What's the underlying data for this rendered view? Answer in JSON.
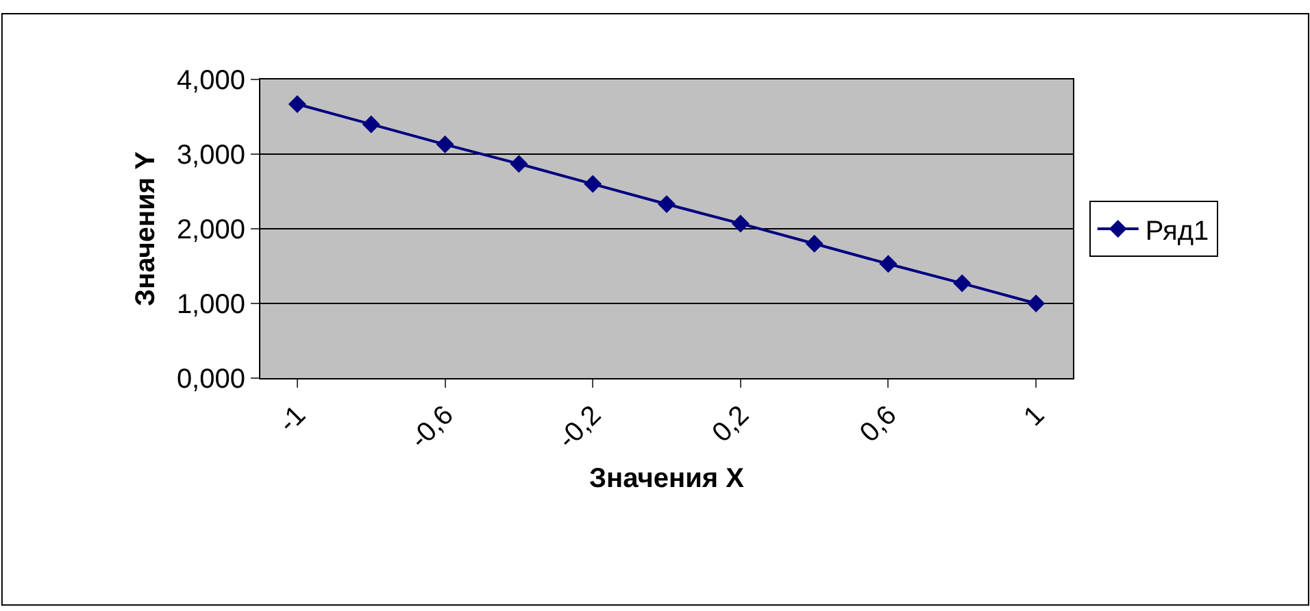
{
  "chart_data": {
    "type": "line",
    "xlabel": "Значения X",
    "ylabel": "Значения Y",
    "categories": [
      "-1",
      null,
      "-0,6",
      null,
      "-0,2",
      null,
      "0,2",
      null,
      "0,6",
      null,
      "1"
    ],
    "series": [
      {
        "name": "Ряд1",
        "color": "#000080",
        "values": [
          3.67,
          3.4,
          3.13,
          2.87,
          2.6,
          2.33,
          2.07,
          1.8,
          1.53,
          1.27,
          1.0
        ]
      }
    ],
    "ylim": [
      0,
      4
    ],
    "yticks": [
      {
        "value": 0,
        "label": "0,000"
      },
      {
        "value": 1,
        "label": "1,000"
      },
      {
        "value": 2,
        "label": "2,000"
      },
      {
        "value": 3,
        "label": "3,000"
      },
      {
        "value": 4,
        "label": "4,000"
      }
    ],
    "grid": "y",
    "legend": "right",
    "marker": "diamond",
    "line_style": "solid"
  }
}
